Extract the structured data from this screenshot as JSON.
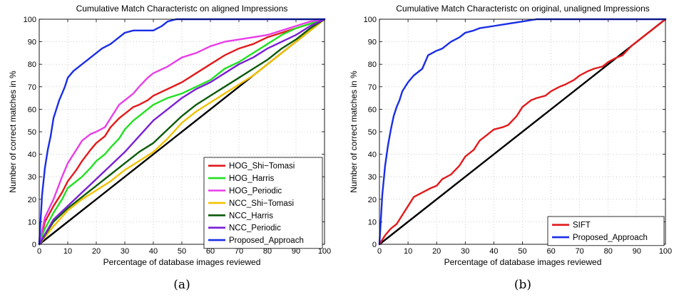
{
  "charts": [
    {
      "title": "Cumulative Match Characteristc on aligned Impressions",
      "xlabel": "Percentage of database images reviewed",
      "ylabel": "Number of correct matches in %",
      "caption": "(a)"
    },
    {
      "title": "Cumulative Match Characteristc on original, unaligned Impressions",
      "xlabel": "Percentage of database images reviewed",
      "ylabel": "Number of correct matches in %",
      "caption": "(b)"
    }
  ],
  "chart_data": [
    {
      "type": "line",
      "title": "Cumulative Match Characteristc on aligned Impressions",
      "xlabel": "Percentage of database images reviewed",
      "ylabel": "Number of correct matches in %",
      "xlim": [
        0,
        100
      ],
      "ylim": [
        0,
        100
      ],
      "xticks": [
        0,
        10,
        20,
        30,
        40,
        50,
        60,
        70,
        80,
        90,
        100
      ],
      "yticks": [
        0,
        10,
        20,
        30,
        40,
        50,
        60,
        70,
        80,
        90,
        100
      ],
      "grid": true,
      "legend": "bottom-right",
      "series": [
        {
          "name": "HOG_Shi−Tomasi",
          "color": "#e31a1c",
          "x": [
            0,
            2,
            5,
            8,
            10,
            13,
            15,
            18,
            20,
            23,
            25,
            28,
            30,
            33,
            35,
            38,
            40,
            45,
            50,
            55,
            60,
            65,
            70,
            75,
            80,
            85,
            90,
            95,
            100
          ],
          "y": [
            0,
            10,
            17,
            23,
            28,
            33,
            37,
            42,
            45,
            48,
            52,
            56,
            58,
            61,
            62,
            64,
            66,
            69,
            72,
            76,
            80,
            84,
            87,
            89,
            92,
            94,
            96,
            98,
            100
          ]
        },
        {
          "name": "HOG_Harris",
          "color": "#22e022",
          "x": [
            0,
            2,
            5,
            8,
            10,
            13,
            15,
            18,
            20,
            23,
            25,
            28,
            30,
            33,
            35,
            38,
            40,
            45,
            50,
            55,
            60,
            65,
            70,
            75,
            80,
            85,
            90,
            95,
            100
          ],
          "y": [
            0,
            7,
            14,
            20,
            25,
            28,
            30,
            34,
            37,
            40,
            43,
            47,
            51,
            55,
            57,
            60,
            62,
            65,
            67,
            70,
            73,
            78,
            81,
            85,
            89,
            93,
            96,
            98,
            100
          ]
        },
        {
          "name": "HOG_Periodic",
          "color": "#e83ee8",
          "x": [
            0,
            2,
            5,
            8,
            10,
            13,
            15,
            18,
            20,
            23,
            25,
            28,
            30,
            33,
            35,
            38,
            40,
            45,
            50,
            55,
            60,
            65,
            70,
            75,
            80,
            85,
            90,
            95,
            100
          ],
          "y": [
            0,
            12,
            20,
            30,
            36,
            42,
            46,
            49,
            50,
            52,
            56,
            62,
            64,
            67,
            70,
            74,
            76,
            79,
            83,
            85,
            88,
            90,
            91,
            92,
            93,
            95,
            97,
            99,
            100
          ]
        },
        {
          "name": "NCC_Shi−Tomasi",
          "color": "#f2c200",
          "x": [
            0,
            5,
            10,
            15,
            20,
            25,
            30,
            35,
            40,
            45,
            50,
            55,
            60,
            65,
            70,
            75,
            80,
            85,
            90,
            95,
            100
          ],
          "y": [
            0,
            8,
            15,
            20,
            24,
            28,
            33,
            37,
            41,
            47,
            54,
            59,
            63,
            67,
            71,
            75,
            80,
            85,
            90,
            95,
            100
          ]
        },
        {
          "name": "NCC_Harris",
          "color": "#0c5a0c",
          "x": [
            0,
            5,
            10,
            15,
            20,
            25,
            30,
            35,
            40,
            45,
            50,
            55,
            60,
            65,
            70,
            75,
            80,
            85,
            90,
            95,
            100
          ],
          "y": [
            0,
            10,
            16,
            21,
            26,
            31,
            36,
            41,
            45,
            51,
            57,
            62,
            66,
            70,
            74,
            78,
            82,
            87,
            91,
            96,
            100
          ]
        },
        {
          "name": "NCC_Periodic",
          "color": "#7b1fd6",
          "x": [
            0,
            5,
            10,
            15,
            20,
            25,
            30,
            35,
            40,
            45,
            50,
            55,
            60,
            65,
            70,
            75,
            80,
            85,
            90,
            95,
            100
          ],
          "y": [
            0,
            11,
            17,
            23,
            29,
            35,
            41,
            48,
            55,
            60,
            65,
            69,
            72,
            76,
            80,
            83,
            87,
            90,
            93,
            97,
            100
          ]
        },
        {
          "name": "Proposed_Approach",
          "color": "#1a2ee6",
          "x": [
            0,
            1,
            2,
            3,
            4,
            5,
            7,
            8,
            9,
            10,
            12,
            15,
            17,
            20,
            22,
            25,
            28,
            30,
            33,
            35,
            40,
            43,
            45,
            48,
            50,
            55,
            60,
            70,
            80,
            90,
            100
          ],
          "y": [
            0,
            22,
            34,
            42,
            48,
            56,
            64,
            67,
            70,
            74,
            77,
            80,
            82,
            85,
            87,
            89,
            92,
            94,
            95,
            95,
            95,
            97,
            99,
            100,
            100,
            100,
            100,
            100,
            100,
            100,
            100
          ]
        },
        {
          "name": "",
          "color": "#000000",
          "x": [
            0,
            100
          ],
          "y": [
            0,
            100
          ]
        }
      ]
    },
    {
      "type": "line",
      "title": "Cumulative Match Characteristc on original, unaligned Impressions",
      "xlabel": "Percentage of database images reviewed",
      "ylabel": "Number of correct matches in %",
      "xlim": [
        0,
        100
      ],
      "ylim": [
        0,
        100
      ],
      "xticks": [
        0,
        10,
        20,
        30,
        40,
        50,
        60,
        70,
        80,
        90,
        100
      ],
      "yticks": [
        0,
        10,
        20,
        30,
        40,
        50,
        60,
        70,
        80,
        90,
        100
      ],
      "grid": true,
      "legend": "bottom-right",
      "series": [
        {
          "name": "SIFT",
          "color": "#e31a1c",
          "x": [
            0,
            2,
            4,
            6,
            8,
            10,
            12,
            15,
            18,
            20,
            22,
            25,
            28,
            30,
            33,
            35,
            38,
            40,
            43,
            45,
            48,
            50,
            53,
            55,
            58,
            60,
            63,
            65,
            68,
            70,
            73,
            75,
            78,
            80,
            83,
            85,
            88,
            90,
            93,
            95,
            98,
            100
          ],
          "y": [
            0,
            4,
            7,
            9,
            13,
            17,
            21,
            23,
            25,
            26,
            29,
            31,
            35,
            39,
            42,
            46,
            49,
            51,
            52,
            53,
            57,
            61,
            64,
            65,
            66,
            68,
            70,
            71,
            73,
            75,
            77,
            78,
            79,
            81,
            83,
            84,
            88,
            90,
            93,
            95,
            98,
            100
          ]
        },
        {
          "name": "Proposed_Approach",
          "color": "#1a2ee6",
          "x": [
            0,
            1,
            2,
            3,
            4,
            5,
            6,
            7,
            8,
            10,
            12,
            15,
            17,
            20,
            22,
            25,
            28,
            30,
            33,
            35,
            40,
            45,
            50,
            55,
            60,
            70,
            80,
            90,
            100
          ],
          "y": [
            0,
            22,
            35,
            44,
            51,
            57,
            61,
            64,
            68,
            72,
            75,
            78,
            84,
            86,
            87,
            90,
            92,
            94,
            95,
            96,
            97,
            98,
            99,
            100,
            100,
            100,
            100,
            100,
            100
          ]
        },
        {
          "name": "",
          "color": "#000000",
          "x": [
            0,
            100
          ],
          "y": [
            0,
            100
          ]
        }
      ]
    }
  ]
}
